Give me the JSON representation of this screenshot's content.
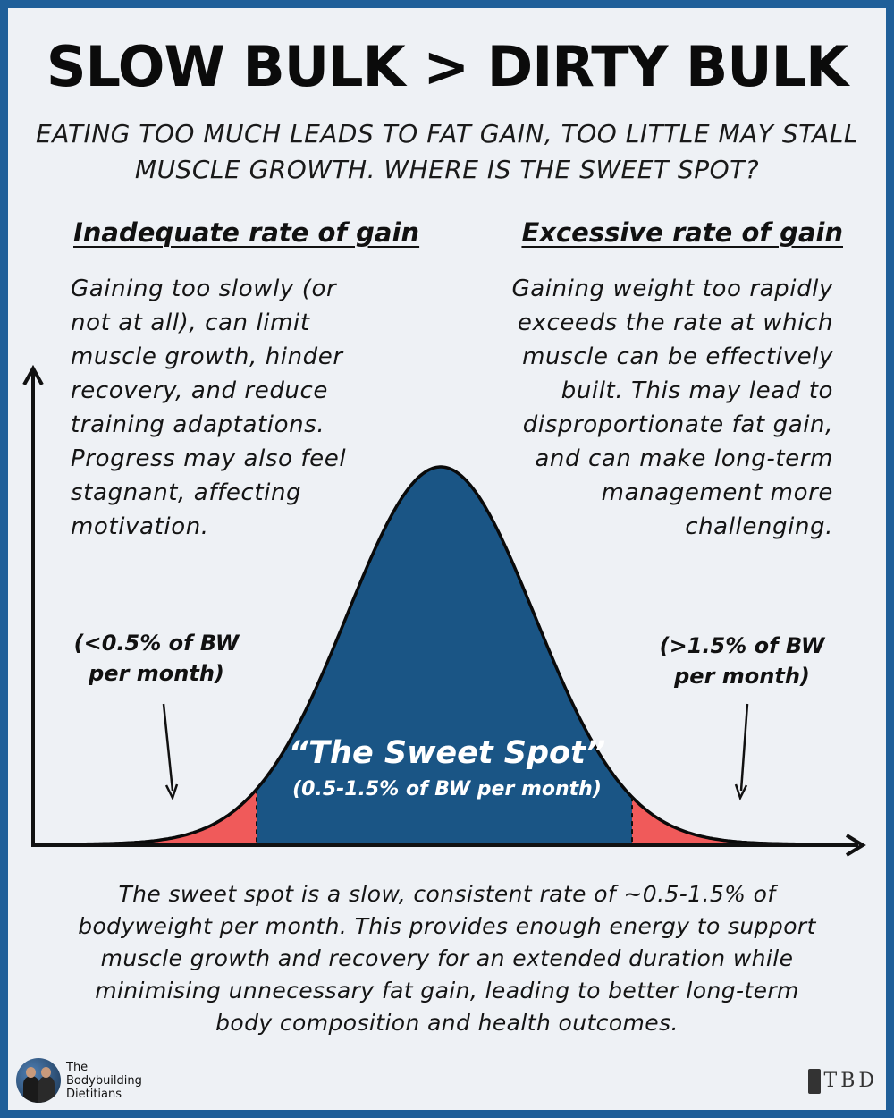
{
  "title": "SLOW BULK > DIRTY BULK",
  "subtitle": "EATING TOO MUCH LEADS TO FAT GAIN, TOO LITTLE MAY STALL MUSCLE GROWTH. WHERE IS THE SWEET SPOT?",
  "left": {
    "heading": "Inadequate rate of gain",
    "body": "Gaining too slowly (or not at all), can limit muscle growth, hinder recovery, and reduce training adaptations. Progress may also feel stagnant, affecting motivation.",
    "range_line1": "(<0.5% of BW",
    "range_line2": "per month)"
  },
  "right": {
    "heading": "Excessive rate of gain",
    "body": "Gaining weight too rapidly exceeds the rate at which muscle can be effectively built. This may lead to disproportionate fat gain, and can make long-term management more challenging.",
    "range_line1": "(>1.5% of BW",
    "range_line2": "per month)"
  },
  "sweet_spot": {
    "title": "“The Sweet Spot”",
    "subtitle": "(0.5-1.5% of BW per month)"
  },
  "summary": "The sweet spot is a slow, consistent rate of ~0.5-1.5% of bodyweight per month. This provides enough energy to support muscle growth and recovery for an extended duration while minimising unnecessary fat gain, leading to better long-term body composition and health outcomes.",
  "brand": {
    "line1": "The",
    "line2": "Bodybuilding",
    "line3": "Dietitians",
    "logo_text": "TBD"
  },
  "colors": {
    "border": "#1f5f99",
    "curve_fill": "#1a5585",
    "tail_fill": "#f05a5a",
    "background": "#eef1f5"
  },
  "icons": [
    "avatar-photo",
    "tbd-logo"
  ]
}
